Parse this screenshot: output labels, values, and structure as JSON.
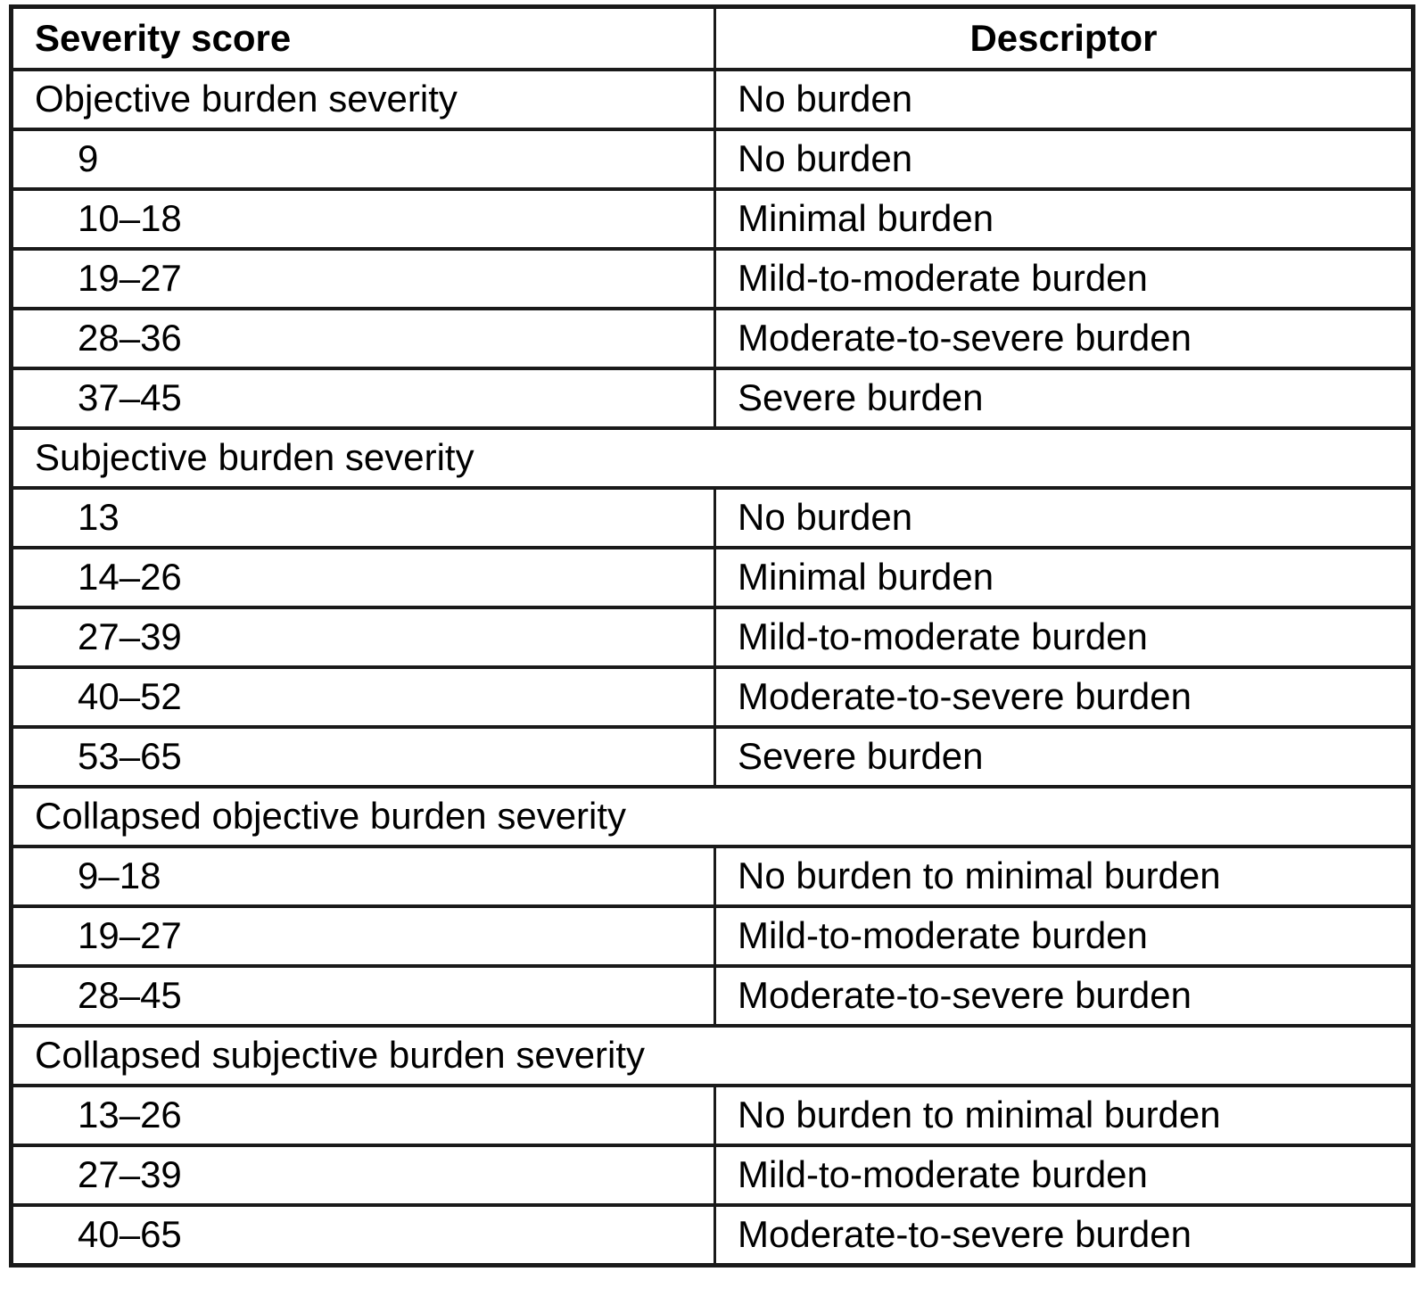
{
  "table": {
    "header": {
      "severity_score": "Severity score",
      "descriptor": "Descriptor"
    },
    "rows": [
      {
        "score": "Objective burden severity",
        "descriptor": "No burden",
        "kind": "section-pair"
      },
      {
        "score": "9",
        "descriptor": "No burden",
        "kind": "data"
      },
      {
        "score": "10–18",
        "descriptor": "Minimal burden",
        "kind": "data"
      },
      {
        "score": "19–27",
        "descriptor": "Mild-to-moderate burden",
        "kind": "data"
      },
      {
        "score": "28–36",
        "descriptor": "Moderate-to-severe burden",
        "kind": "data"
      },
      {
        "score": "37–45",
        "descriptor": "Severe burden",
        "kind": "data"
      },
      {
        "score": "Subjective burden severity",
        "kind": "section"
      },
      {
        "score": "13",
        "descriptor": "No burden",
        "kind": "data"
      },
      {
        "score": "14–26",
        "descriptor": "Minimal burden",
        "kind": "data"
      },
      {
        "score": "27–39",
        "descriptor": "Mild-to-moderate burden",
        "kind": "data"
      },
      {
        "score": "40–52",
        "descriptor": "Moderate-to-severe burden",
        "kind": "data"
      },
      {
        "score": "53–65",
        "descriptor": "Severe burden",
        "kind": "data"
      },
      {
        "score": "Collapsed objective burden severity",
        "kind": "section"
      },
      {
        "score": "9–18",
        "descriptor": "No burden to minimal burden",
        "kind": "data"
      },
      {
        "score": "19–27",
        "descriptor": "Mild-to-moderate burden",
        "kind": "data"
      },
      {
        "score": "28–45",
        "descriptor": "Moderate-to-severe burden",
        "kind": "data"
      },
      {
        "score": "Collapsed subjective burden severity",
        "kind": "section"
      },
      {
        "score": "13–26",
        "descriptor": "No burden to minimal burden",
        "kind": "data"
      },
      {
        "score": "27–39",
        "descriptor": "Mild-to-moderate burden",
        "kind": "data"
      },
      {
        "score": "40–65",
        "descriptor": "Moderate-to-severe burden",
        "kind": "data"
      }
    ],
    "colors": {
      "border": "#1a1a1a",
      "text": "#000000",
      "background": "#ffffff"
    }
  }
}
